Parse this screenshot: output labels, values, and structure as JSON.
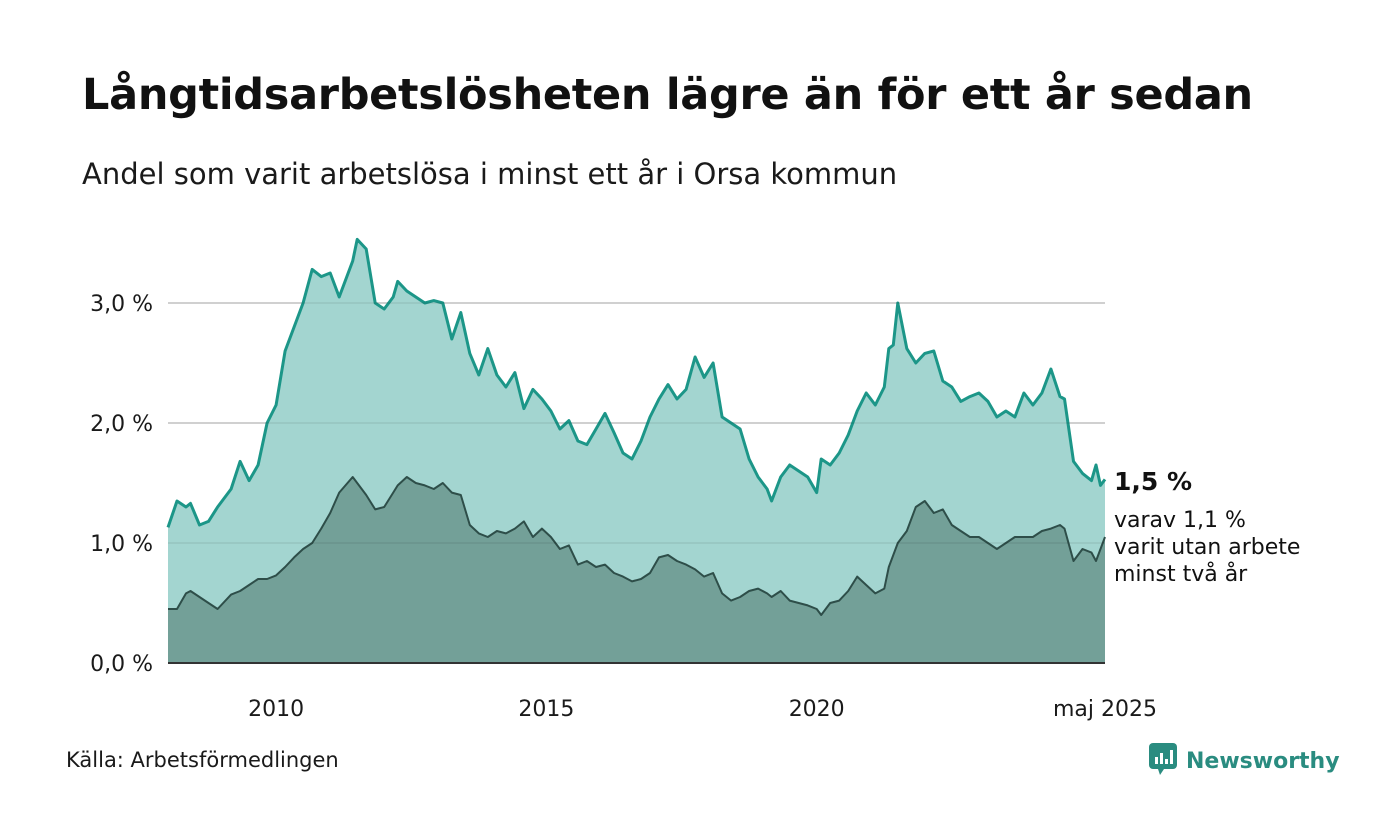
{
  "title": "Långtidsarbetslösheten lägre än för ett år sedan",
  "subtitle": "Andel som varit arbetslösa i minst ett år i Orsa kommun",
  "source": "Källa: Arbetsförmedlingen",
  "brand": {
    "name": "Newsworthy",
    "icon": "newsworthy-logo-icon"
  },
  "colors": {
    "total_fill": "#a3d5d0",
    "total_line": "#1c9688",
    "long_fill": "#73a098",
    "long_line": "#2e4e49",
    "grid": "#dddddd",
    "axis": "#333333",
    "brand": "#2a8c80"
  },
  "chart_data": {
    "type": "area",
    "x_start": "2008-01",
    "x_end": "2025-05",
    "ylim": [
      0,
      3.6
    ],
    "y_ticks": [
      {
        "value": 0,
        "label": "0,0 %"
      },
      {
        "value": 1,
        "label": "1,0 %"
      },
      {
        "value": 2,
        "label": "2,0 %"
      },
      {
        "value": 3,
        "label": "3,0 %"
      }
    ],
    "x_ticks": [
      {
        "value": "2010-01",
        "label": "2010"
      },
      {
        "value": "2015-01",
        "label": "2015"
      },
      {
        "value": "2020-01",
        "label": "2020"
      },
      {
        "value": "2025-05",
        "label": "maj 2025"
      }
    ],
    "grid": true,
    "series": [
      {
        "key": "total",
        "points": [
          [
            "2008-01",
            1.13
          ],
          [
            "2008-03",
            1.35
          ],
          [
            "2008-05",
            1.3
          ],
          [
            "2008-06",
            1.33
          ],
          [
            "2008-08",
            1.15
          ],
          [
            "2008-10",
            1.18
          ],
          [
            "2008-12",
            1.3
          ],
          [
            "2009-03",
            1.45
          ],
          [
            "2009-05",
            1.68
          ],
          [
            "2009-07",
            1.52
          ],
          [
            "2009-09",
            1.65
          ],
          [
            "2009-11",
            2.0
          ],
          [
            "2010-01",
            2.15
          ],
          [
            "2010-03",
            2.6
          ],
          [
            "2010-05",
            2.8
          ],
          [
            "2010-07",
            3.0
          ],
          [
            "2010-09",
            3.28
          ],
          [
            "2010-11",
            3.22
          ],
          [
            "2011-01",
            3.25
          ],
          [
            "2011-03",
            3.05
          ],
          [
            "2011-06",
            3.35
          ],
          [
            "2011-07",
            3.53
          ],
          [
            "2011-09",
            3.45
          ],
          [
            "2011-11",
            3.0
          ],
          [
            "2012-01",
            2.95
          ],
          [
            "2012-03",
            3.05
          ],
          [
            "2012-04",
            3.18
          ],
          [
            "2012-06",
            3.1
          ],
          [
            "2012-08",
            3.05
          ],
          [
            "2012-10",
            3.0
          ],
          [
            "2012-12",
            3.02
          ],
          [
            "2013-02",
            3.0
          ],
          [
            "2013-04",
            2.7
          ],
          [
            "2013-06",
            2.92
          ],
          [
            "2013-08",
            2.58
          ],
          [
            "2013-10",
            2.4
          ],
          [
            "2013-12",
            2.62
          ],
          [
            "2014-02",
            2.4
          ],
          [
            "2014-04",
            2.3
          ],
          [
            "2014-06",
            2.42
          ],
          [
            "2014-08",
            2.12
          ],
          [
            "2014-10",
            2.28
          ],
          [
            "2014-12",
            2.2
          ],
          [
            "2015-02",
            2.1
          ],
          [
            "2015-04",
            1.95
          ],
          [
            "2015-06",
            2.02
          ],
          [
            "2015-08",
            1.85
          ],
          [
            "2015-10",
            1.82
          ],
          [
            "2015-12",
            1.95
          ],
          [
            "2016-02",
            2.08
          ],
          [
            "2016-04",
            1.92
          ],
          [
            "2016-06",
            1.75
          ],
          [
            "2016-08",
            1.7
          ],
          [
            "2016-10",
            1.85
          ],
          [
            "2016-12",
            2.05
          ],
          [
            "2017-02",
            2.2
          ],
          [
            "2017-04",
            2.32
          ],
          [
            "2017-06",
            2.2
          ],
          [
            "2017-08",
            2.28
          ],
          [
            "2017-10",
            2.55
          ],
          [
            "2017-12",
            2.38
          ],
          [
            "2018-02",
            2.5
          ],
          [
            "2018-04",
            2.05
          ],
          [
            "2018-06",
            2.0
          ],
          [
            "2018-08",
            1.95
          ],
          [
            "2018-10",
            1.7
          ],
          [
            "2018-12",
            1.55
          ],
          [
            "2019-02",
            1.45
          ],
          [
            "2019-03",
            1.35
          ],
          [
            "2019-05",
            1.55
          ],
          [
            "2019-07",
            1.65
          ],
          [
            "2019-09",
            1.6
          ],
          [
            "2019-11",
            1.55
          ],
          [
            "2020-01",
            1.42
          ],
          [
            "2020-02",
            1.7
          ],
          [
            "2020-04",
            1.65
          ],
          [
            "2020-06",
            1.75
          ],
          [
            "2020-08",
            1.9
          ],
          [
            "2020-10",
            2.1
          ],
          [
            "2020-12",
            2.25
          ],
          [
            "2021-02",
            2.15
          ],
          [
            "2021-04",
            2.3
          ],
          [
            "2021-05",
            2.62
          ],
          [
            "2021-06",
            2.65
          ],
          [
            "2021-07",
            3.0
          ],
          [
            "2021-09",
            2.62
          ],
          [
            "2021-11",
            2.5
          ],
          [
            "2022-01",
            2.58
          ],
          [
            "2022-03",
            2.6
          ],
          [
            "2022-05",
            2.35
          ],
          [
            "2022-07",
            2.3
          ],
          [
            "2022-09",
            2.18
          ],
          [
            "2022-11",
            2.22
          ],
          [
            "2023-01",
            2.25
          ],
          [
            "2023-03",
            2.18
          ],
          [
            "2023-05",
            2.05
          ],
          [
            "2023-07",
            2.1
          ],
          [
            "2023-09",
            2.05
          ],
          [
            "2023-11",
            2.25
          ],
          [
            "2024-01",
            2.15
          ],
          [
            "2024-03",
            2.25
          ],
          [
            "2024-05",
            2.45
          ],
          [
            "2024-07",
            2.22
          ],
          [
            "2024-08",
            2.2
          ],
          [
            "2024-10",
            1.68
          ],
          [
            "2024-12",
            1.58
          ],
          [
            "2025-02",
            1.52
          ],
          [
            "2025-03",
            1.65
          ],
          [
            "2025-04",
            1.48
          ],
          [
            "2025-05",
            1.53
          ]
        ]
      },
      {
        "key": "long",
        "points": [
          [
            "2008-01",
            0.45
          ],
          [
            "2008-03",
            0.45
          ],
          [
            "2008-05",
            0.58
          ],
          [
            "2008-06",
            0.6
          ],
          [
            "2008-08",
            0.55
          ],
          [
            "2008-10",
            0.5
          ],
          [
            "2008-12",
            0.45
          ],
          [
            "2009-03",
            0.57
          ],
          [
            "2009-05",
            0.6
          ],
          [
            "2009-07",
            0.65
          ],
          [
            "2009-09",
            0.7
          ],
          [
            "2009-11",
            0.7
          ],
          [
            "2010-01",
            0.73
          ],
          [
            "2010-03",
            0.8
          ],
          [
            "2010-05",
            0.88
          ],
          [
            "2010-07",
            0.95
          ],
          [
            "2010-09",
            1.0
          ],
          [
            "2010-11",
            1.12
          ],
          [
            "2011-01",
            1.25
          ],
          [
            "2011-03",
            1.42
          ],
          [
            "2011-06",
            1.55
          ],
          [
            "2011-07",
            1.5
          ],
          [
            "2011-09",
            1.4
          ],
          [
            "2011-11",
            1.28
          ],
          [
            "2012-01",
            1.3
          ],
          [
            "2012-03",
            1.42
          ],
          [
            "2012-04",
            1.48
          ],
          [
            "2012-06",
            1.55
          ],
          [
            "2012-08",
            1.5
          ],
          [
            "2012-10",
            1.48
          ],
          [
            "2012-12",
            1.45
          ],
          [
            "2013-02",
            1.5
          ],
          [
            "2013-04",
            1.42
          ],
          [
            "2013-06",
            1.4
          ],
          [
            "2013-08",
            1.15
          ],
          [
            "2013-10",
            1.08
          ],
          [
            "2013-12",
            1.05
          ],
          [
            "2014-02",
            1.1
          ],
          [
            "2014-04",
            1.08
          ],
          [
            "2014-06",
            1.12
          ],
          [
            "2014-08",
            1.18
          ],
          [
            "2014-10",
            1.05
          ],
          [
            "2014-12",
            1.12
          ],
          [
            "2015-02",
            1.05
          ],
          [
            "2015-04",
            0.95
          ],
          [
            "2015-06",
            0.98
          ],
          [
            "2015-08",
            0.82
          ],
          [
            "2015-10",
            0.85
          ],
          [
            "2015-12",
            0.8
          ],
          [
            "2016-02",
            0.82
          ],
          [
            "2016-04",
            0.75
          ],
          [
            "2016-06",
            0.72
          ],
          [
            "2016-08",
            0.68
          ],
          [
            "2016-10",
            0.7
          ],
          [
            "2016-12",
            0.75
          ],
          [
            "2017-02",
            0.88
          ],
          [
            "2017-04",
            0.9
          ],
          [
            "2017-06",
            0.85
          ],
          [
            "2017-08",
            0.82
          ],
          [
            "2017-10",
            0.78
          ],
          [
            "2017-12",
            0.72
          ],
          [
            "2018-02",
            0.75
          ],
          [
            "2018-04",
            0.58
          ],
          [
            "2018-06",
            0.52
          ],
          [
            "2018-08",
            0.55
          ],
          [
            "2018-10",
            0.6
          ],
          [
            "2018-12",
            0.62
          ],
          [
            "2019-02",
            0.58
          ],
          [
            "2019-03",
            0.55
          ],
          [
            "2019-05",
            0.6
          ],
          [
            "2019-07",
            0.52
          ],
          [
            "2019-09",
            0.5
          ],
          [
            "2019-11",
            0.48
          ],
          [
            "2020-01",
            0.45
          ],
          [
            "2020-02",
            0.4
          ],
          [
            "2020-04",
            0.5
          ],
          [
            "2020-06",
            0.52
          ],
          [
            "2020-08",
            0.6
          ],
          [
            "2020-10",
            0.72
          ],
          [
            "2020-12",
            0.65
          ],
          [
            "2021-02",
            0.58
          ],
          [
            "2021-04",
            0.62
          ],
          [
            "2021-05",
            0.8
          ],
          [
            "2021-06",
            0.9
          ],
          [
            "2021-07",
            1.0
          ],
          [
            "2021-09",
            1.1
          ],
          [
            "2021-11",
            1.3
          ],
          [
            "2022-01",
            1.35
          ],
          [
            "2022-03",
            1.25
          ],
          [
            "2022-05",
            1.28
          ],
          [
            "2022-07",
            1.15
          ],
          [
            "2022-09",
            1.1
          ],
          [
            "2022-11",
            1.05
          ],
          [
            "2023-01",
            1.05
          ],
          [
            "2023-03",
            1.0
          ],
          [
            "2023-05",
            0.95
          ],
          [
            "2023-07",
            1.0
          ],
          [
            "2023-09",
            1.05
          ],
          [
            "2023-11",
            1.05
          ],
          [
            "2024-01",
            1.05
          ],
          [
            "2024-03",
            1.1
          ],
          [
            "2024-05",
            1.12
          ],
          [
            "2024-07",
            1.15
          ],
          [
            "2024-08",
            1.12
          ],
          [
            "2024-10",
            0.85
          ],
          [
            "2024-12",
            0.95
          ],
          [
            "2025-02",
            0.92
          ],
          [
            "2025-03",
            0.85
          ],
          [
            "2025-04",
            0.95
          ],
          [
            "2025-05",
            1.05
          ]
        ]
      }
    ],
    "annotations": {
      "total_value": "1,5 %",
      "long_lines": [
        "varav 1,1 %",
        "varit utan arbete",
        "minst två år"
      ]
    }
  }
}
